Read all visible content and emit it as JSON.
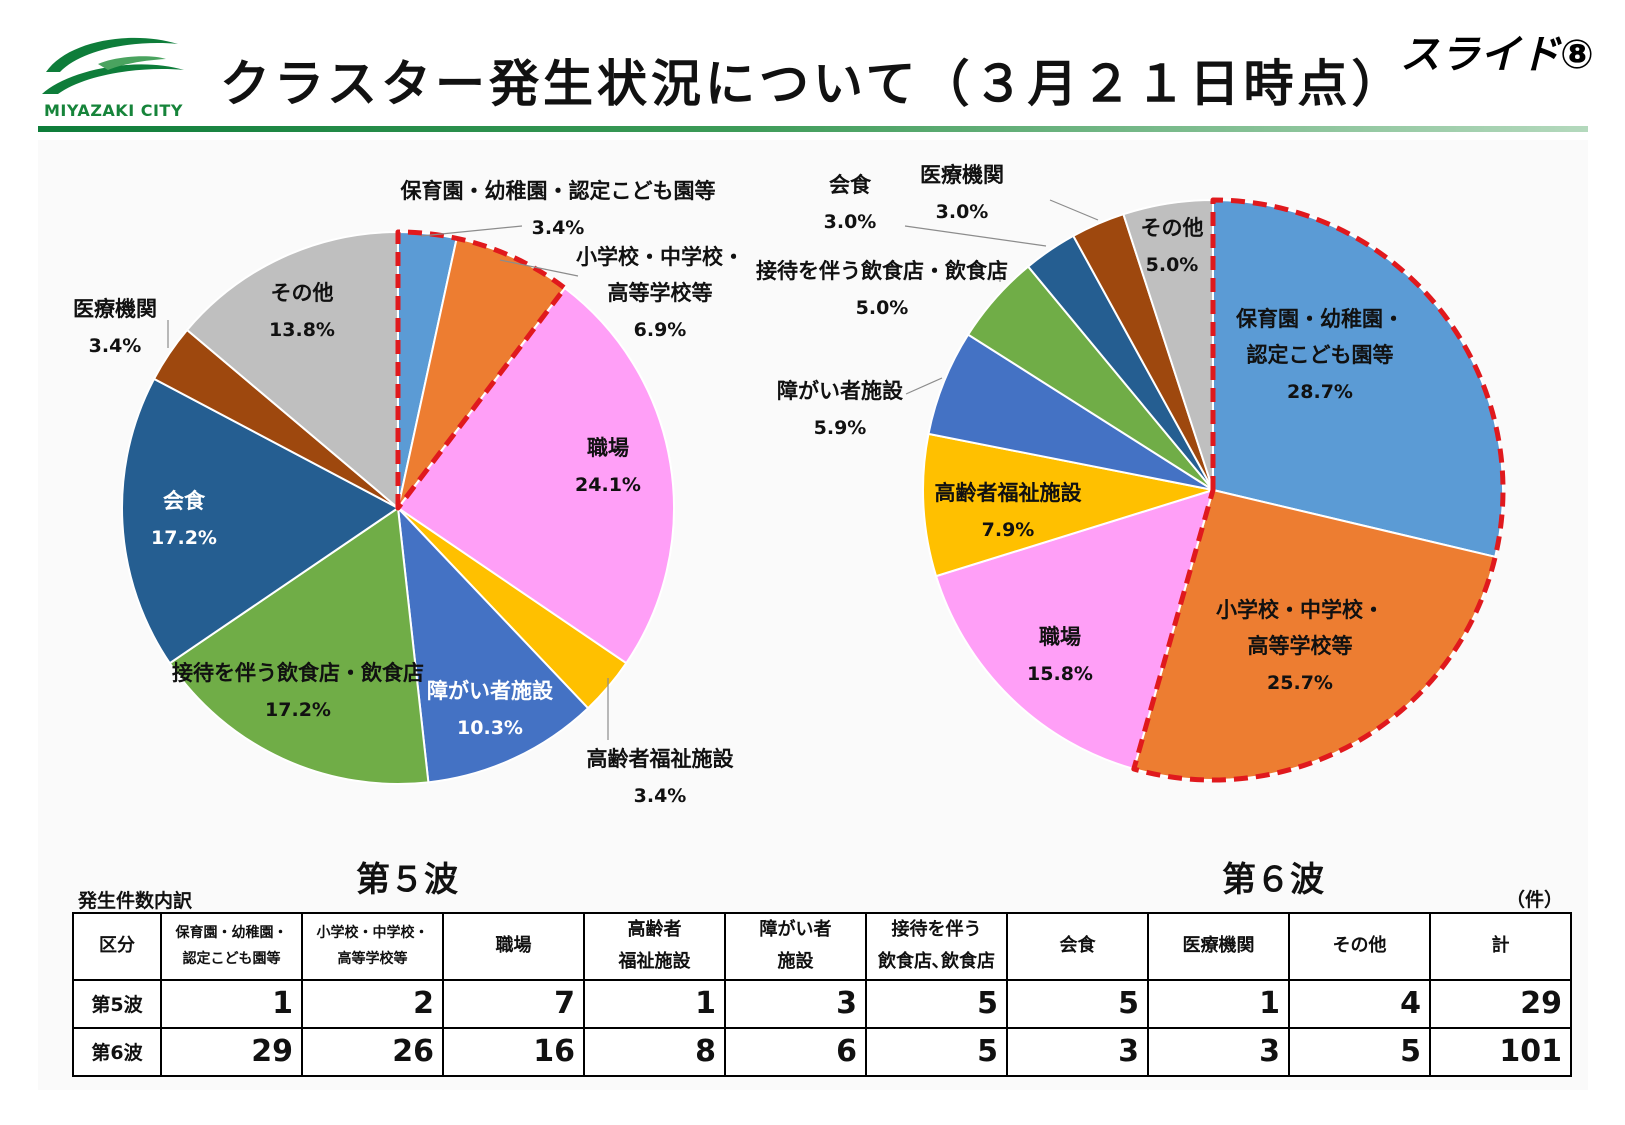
{
  "header": {
    "logo_text": "MIYAZAKI CITY",
    "title": "クラスター発生状況について（３月２１日時点）",
    "slide_label": "スライド⑧"
  },
  "colors": {
    "brand_green": "#0e7d3a",
    "highlight_border": "#e0191d"
  },
  "chart_data": [
    {
      "type": "pie",
      "title": "第５波",
      "start_angle_deg": 0,
      "highlighted_slices": [
        "保育園・幼稚園・認定こども園等",
        "小学校・中学校・高等学校等"
      ],
      "slices": [
        {
          "name": "保育園・幼稚園・認定こども園等",
          "value": 3.4,
          "color": "#5b9bd5",
          "label": [
            "保育園・幼稚園・認定こども園等"
          ],
          "pct": "3.4%"
        },
        {
          "name": "小学校・中学校・高等学校等",
          "value": 6.9,
          "color": "#ed7d31",
          "label": [
            "小学校・中学校・",
            "高等学校等"
          ],
          "pct": "6.9%"
        },
        {
          "name": "職場",
          "value": 24.1,
          "color": "#ff9ff7",
          "label": [
            "職場"
          ],
          "pct": "24.1%"
        },
        {
          "name": "高齢者福祉施設",
          "value": 3.4,
          "color": "#ffc000",
          "label": [
            "高齢者福祉施設"
          ],
          "pct": "3.4%"
        },
        {
          "name": "障がい者施設",
          "value": 10.3,
          "color": "#4472c4",
          "label": [
            "障がい者施設"
          ],
          "pct": "10.3%"
        },
        {
          "name": "接待を伴う飲食店・飲食店",
          "value": 17.2,
          "color": "#70ad47",
          "label": [
            "接待を伴う飲食店・飲食店"
          ],
          "pct": "17.2%"
        },
        {
          "name": "会食",
          "value": 17.2,
          "color": "#255e91",
          "label": [
            "会食"
          ],
          "pct": "17.2%"
        },
        {
          "name": "医療機関",
          "value": 3.4,
          "color": "#9e480e",
          "label": [
            "医療機関"
          ],
          "pct": "3.4%"
        },
        {
          "name": "その他",
          "value": 13.8,
          "color": "#bfbfbf",
          "label": [
            "その他"
          ],
          "pct": "13.8%"
        }
      ]
    },
    {
      "type": "pie",
      "title": "第６波",
      "start_angle_deg": 0,
      "highlighted_slices": [
        "保育園・幼稚園・認定こども園等",
        "小学校・中学校・高等学校等"
      ],
      "slices": [
        {
          "name": "保育園・幼稚園・認定こども園等",
          "value": 28.7,
          "color": "#5b9bd5",
          "label": [
            "保育園・幼稚園・",
            "認定こども園等"
          ],
          "pct": "28.7%"
        },
        {
          "name": "小学校・中学校・高等学校等",
          "value": 25.7,
          "color": "#ed7d31",
          "label": [
            "小学校・中学校・",
            "高等学校等"
          ],
          "pct": "25.7%"
        },
        {
          "name": "職場",
          "value": 15.8,
          "color": "#ff9ff7",
          "label": [
            "職場"
          ],
          "pct": "15.8%"
        },
        {
          "name": "高齢者福祉施設",
          "value": 7.9,
          "color": "#ffc000",
          "label": [
            "高齢者福祉施設"
          ],
          "pct": "7.9%"
        },
        {
          "name": "障がい者施設",
          "value": 5.9,
          "color": "#4472c4",
          "label": [
            "障がい者施設"
          ],
          "pct": "5.9%"
        },
        {
          "name": "接待を伴う飲食店・飲食店",
          "value": 5.0,
          "color": "#70ad47",
          "label": [
            "接待を伴う飲食店・飲食店"
          ],
          "pct": "5.0%"
        },
        {
          "name": "会食",
          "value": 3.0,
          "color": "#255e91",
          "label": [
            "会食"
          ],
          "pct": "3.0%"
        },
        {
          "name": "医療機関",
          "value": 3.0,
          "color": "#9e480e",
          "label": [
            "医療機関"
          ],
          "pct": "3.0%"
        },
        {
          "name": "その他",
          "value": 5.0,
          "color": "#bfbfbf",
          "label": [
            "その他"
          ],
          "pct": "5.0%"
        }
      ]
    }
  ],
  "table": {
    "caption": "発生件数内訳",
    "unit": "（件）",
    "corner_header": "区分",
    "headers": [
      [
        "保育園・幼稚園・",
        "認定こども園等"
      ],
      [
        "小学校・中学校・",
        "高等学校等"
      ],
      [
        "職場"
      ],
      [
        "高齢者",
        "福祉施設"
      ],
      [
        "障がい者",
        "施設"
      ],
      [
        "接待を伴う",
        "飲食店､飲食店"
      ],
      [
        "会食"
      ],
      [
        "医療機関"
      ],
      [
        "その他"
      ],
      [
        "計"
      ]
    ],
    "rows": [
      {
        "label": "第5波",
        "values": [
          "1",
          "2",
          "7",
          "1",
          "3",
          "5",
          "5",
          "1",
          "4",
          "29"
        ]
      },
      {
        "label": "第6波",
        "values": [
          "29",
          "26",
          "16",
          "8",
          "6",
          "5",
          "3",
          "3",
          "5",
          "101"
        ]
      }
    ]
  }
}
